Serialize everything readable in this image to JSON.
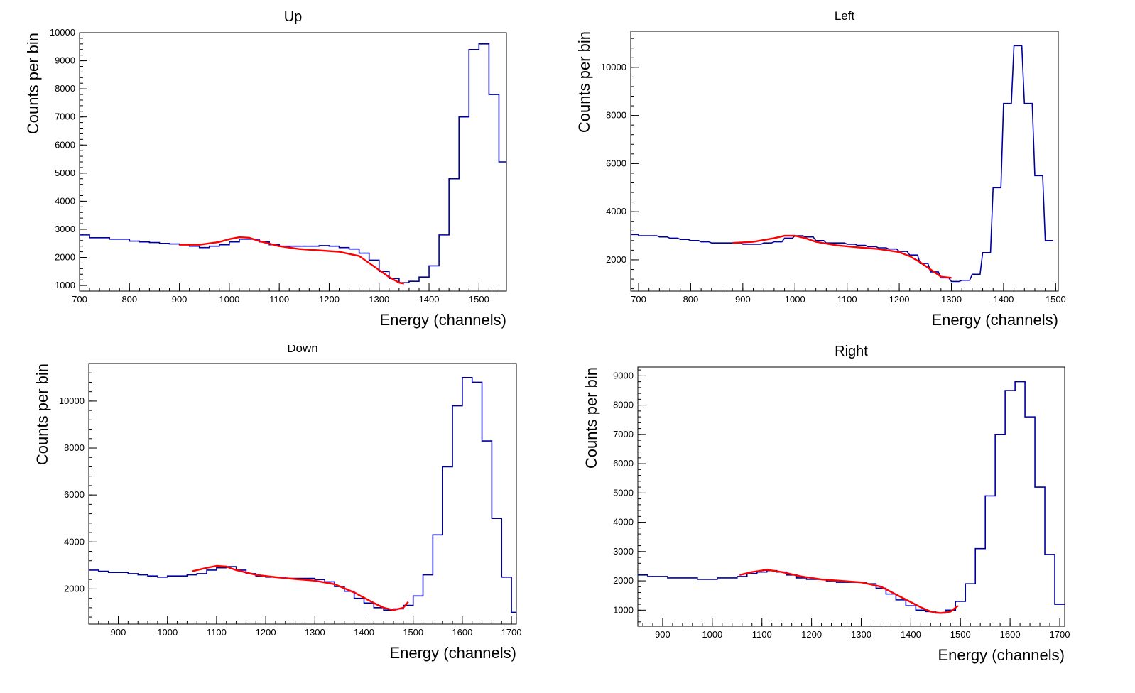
{
  "colors": {
    "histogram": "#0000a0",
    "fit": "#ff0000",
    "axis": "#000000"
  },
  "chart_data": [
    {
      "type": "line",
      "title": "Up",
      "xlabel": "Energy (channels)",
      "ylabel": "Counts per bin",
      "xlim": [
        700,
        1555
      ],
      "ylim": [
        800,
        10000
      ],
      "xticks": [
        700,
        800,
        900,
        1000,
        1100,
        1200,
        1300,
        1400,
        1500
      ],
      "yticks": [
        1000,
        2000,
        3000,
        4000,
        5000,
        6000,
        7000,
        8000,
        9000,
        10000
      ],
      "grid": false,
      "series": [
        {
          "kind": "histogram",
          "x": [
            700,
            720,
            740,
            760,
            780,
            800,
            820,
            840,
            860,
            880,
            900,
            920,
            940,
            960,
            980,
            1000,
            1020,
            1040,
            1060,
            1080,
            1100,
            1120,
            1140,
            1160,
            1180,
            1200,
            1220,
            1240,
            1260,
            1280,
            1300,
            1320,
            1340,
            1360,
            1380,
            1400,
            1420,
            1440,
            1460,
            1480,
            1500,
            1520,
            1540
          ],
          "y": [
            2800,
            2700,
            2700,
            2650,
            2650,
            2580,
            2550,
            2530,
            2500,
            2480,
            2450,
            2400,
            2350,
            2400,
            2450,
            2550,
            2650,
            2650,
            2550,
            2450,
            2400,
            2400,
            2400,
            2400,
            2420,
            2400,
            2350,
            2300,
            2150,
            1900,
            1500,
            1250,
            1100,
            1150,
            1300,
            1700,
            2800,
            4800,
            7000,
            9400,
            9600,
            7800,
            5400
          ]
        },
        {
          "kind": "fit",
          "x": [
            900,
            940,
            980,
            1000,
            1020,
            1040,
            1060,
            1100,
            1140,
            1180,
            1220,
            1260,
            1280,
            1300,
            1320,
            1340,
            1350
          ],
          "y": [
            2450,
            2450,
            2550,
            2650,
            2720,
            2700,
            2580,
            2400,
            2300,
            2250,
            2200,
            2050,
            1800,
            1550,
            1300,
            1100,
            1070
          ]
        }
      ]
    },
    {
      "type": "line",
      "title": "Left",
      "xlabel": "Energy (channels)",
      "ylabel": "Counts per bin",
      "xlim": [
        685,
        1505
      ],
      "ylim": [
        700,
        11500
      ],
      "xticks": [
        700,
        800,
        900,
        1000,
        1100,
        1200,
        1300,
        1400,
        1500
      ],
      "yticks": [
        2000,
        4000,
        6000,
        8000,
        10000
      ],
      "grid": false,
      "series": [
        {
          "kind": "histogram",
          "x": [
            685,
            700,
            720,
            740,
            760,
            780,
            800,
            820,
            840,
            860,
            880,
            900,
            920,
            940,
            960,
            980,
            1000,
            1020,
            1040,
            1060,
            1080,
            1100,
            1120,
            1140,
            1160,
            1180,
            1200,
            1220,
            1240,
            1260,
            1280,
            1300,
            1320,
            1340,
            1360,
            1380,
            1400,
            1420,
            1440,
            1460,
            1480
          ],
          "y": [
            3050,
            3000,
            3000,
            2950,
            2900,
            2850,
            2800,
            2750,
            2700,
            2700,
            2700,
            2650,
            2650,
            2700,
            2750,
            2900,
            3000,
            2950,
            2800,
            2700,
            2700,
            2650,
            2600,
            2550,
            2500,
            2450,
            2350,
            2200,
            1850,
            1500,
            1250,
            1100,
            1150,
            1400,
            2300,
            5000,
            8500,
            10900,
            8500,
            5500,
            2800
          ]
        },
        {
          "kind": "fit",
          "x": [
            880,
            920,
            960,
            980,
            1000,
            1020,
            1040,
            1080,
            1120,
            1160,
            1200,
            1220,
            1240,
            1260,
            1280,
            1300
          ],
          "y": [
            2700,
            2750,
            2900,
            3000,
            3000,
            2900,
            2750,
            2600,
            2520,
            2450,
            2320,
            2150,
            1900,
            1600,
            1300,
            1250
          ]
        }
      ]
    },
    {
      "type": "line",
      "title": "Down",
      "xlabel": "Energy (channels)",
      "ylabel": "Counts per bin",
      "xlim": [
        840,
        1710
      ],
      "ylim": [
        500,
        11600
      ],
      "xticks": [
        900,
        1000,
        1100,
        1200,
        1300,
        1400,
        1500,
        1600,
        1700
      ],
      "yticks": [
        2000,
        4000,
        6000,
        8000,
        10000
      ],
      "grid": false,
      "series": [
        {
          "kind": "histogram",
          "x": [
            840,
            860,
            880,
            900,
            920,
            940,
            960,
            980,
            1000,
            1020,
            1040,
            1060,
            1080,
            1100,
            1120,
            1140,
            1160,
            1180,
            1200,
            1220,
            1240,
            1260,
            1280,
            1300,
            1320,
            1340,
            1360,
            1380,
            1400,
            1420,
            1440,
            1460,
            1480,
            1500,
            1520,
            1540,
            1560,
            1580,
            1600,
            1620,
            1640,
            1660,
            1680,
            1700
          ],
          "y": [
            2800,
            2750,
            2700,
            2700,
            2650,
            2600,
            2550,
            2500,
            2550,
            2550,
            2600,
            2650,
            2800,
            2900,
            2950,
            2800,
            2650,
            2550,
            2500,
            2500,
            2450,
            2450,
            2450,
            2400,
            2300,
            2100,
            1900,
            1600,
            1400,
            1200,
            1100,
            1150,
            1300,
            1700,
            2600,
            4300,
            7200,
            9800,
            11000,
            10800,
            8300,
            5000,
            2500,
            1000
          ]
        },
        {
          "kind": "fit",
          "x": [
            1050,
            1080,
            1100,
            1120,
            1140,
            1180,
            1220,
            1260,
            1300,
            1340,
            1380,
            1420,
            1440,
            1460,
            1480,
            1490
          ],
          "y": [
            2750,
            2900,
            2980,
            2950,
            2800,
            2600,
            2500,
            2420,
            2350,
            2200,
            1850,
            1400,
            1200,
            1100,
            1200,
            1450
          ]
        }
      ]
    },
    {
      "type": "line",
      "title": "Right",
      "xlabel": "Energy (channels)",
      "ylabel": "Counts per bin",
      "xlim": [
        850,
        1710
      ],
      "ylim": [
        450,
        9300
      ],
      "xticks": [
        900,
        1000,
        1100,
        1200,
        1300,
        1400,
        1500,
        1600,
        1700
      ],
      "yticks": [
        1000,
        2000,
        3000,
        4000,
        5000,
        6000,
        7000,
        8000,
        9000
      ],
      "grid": false,
      "series": [
        {
          "kind": "histogram",
          "x": [
            850,
            870,
            890,
            910,
            930,
            950,
            970,
            990,
            1010,
            1030,
            1050,
            1070,
            1090,
            1110,
            1130,
            1150,
            1170,
            1190,
            1210,
            1230,
            1250,
            1270,
            1290,
            1310,
            1330,
            1350,
            1370,
            1390,
            1410,
            1430,
            1450,
            1470,
            1490,
            1510,
            1530,
            1550,
            1570,
            1590,
            1610,
            1630,
            1650,
            1670,
            1690
          ],
          "y": [
            2200,
            2150,
            2150,
            2100,
            2100,
            2100,
            2050,
            2050,
            2100,
            2100,
            2150,
            2250,
            2300,
            2350,
            2300,
            2200,
            2100,
            2050,
            2050,
            2000,
            1950,
            1950,
            1950,
            1900,
            1750,
            1550,
            1350,
            1150,
            1000,
            950,
            900,
            1000,
            1300,
            1900,
            3100,
            4900,
            7000,
            8500,
            8800,
            7600,
            5200,
            2900,
            1200
          ]
        },
        {
          "kind": "fit",
          "x": [
            1055,
            1080,
            1110,
            1140,
            1180,
            1220,
            1260,
            1300,
            1340,
            1380,
            1420,
            1440,
            1460,
            1480,
            1495
          ],
          "y": [
            2200,
            2300,
            2380,
            2300,
            2150,
            2050,
            2000,
            1950,
            1800,
            1450,
            1100,
            950,
            900,
            950,
            1150
          ]
        }
      ]
    }
  ]
}
